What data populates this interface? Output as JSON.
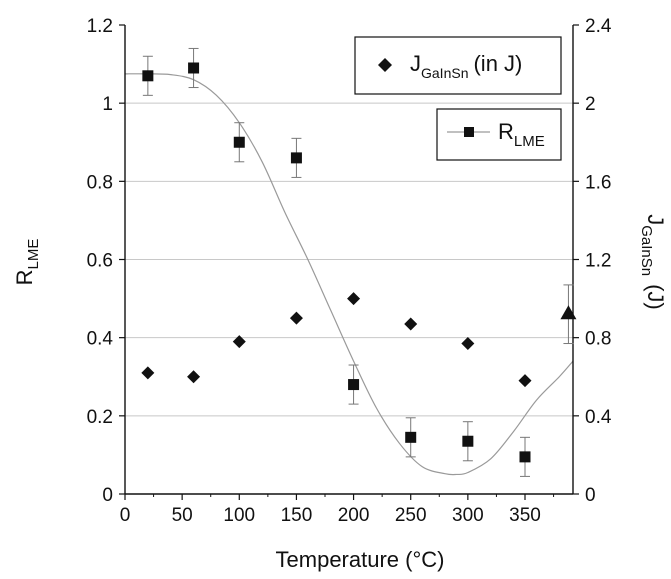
{
  "chart_data": {
    "type": "scatter",
    "xlabel": "Temperature (°C)",
    "ylabel_left": {
      "main": "R",
      "sub": "LME"
    },
    "ylabel_right": {
      "main": "J",
      "sub": "GaInSn",
      "suffix": "(J)"
    },
    "xlim": [
      0,
      392
    ],
    "ylim_left": [
      0,
      1.2
    ],
    "ylim_right": [
      0,
      2.4
    ],
    "x_ticks": [
      0,
      50,
      100,
      150,
      200,
      250,
      300,
      350
    ],
    "left_ticks": [
      "0",
      "0.2",
      "0.4",
      "0.6",
      "0.8",
      "1",
      "1.2"
    ],
    "right_ticks": [
      "0",
      "0.4",
      "0.8",
      "1.2",
      "1.6",
      "2",
      "2.4"
    ],
    "gridlines": [
      0.2,
      0.4,
      0.6,
      0.8,
      1.0
    ],
    "series": [
      {
        "name": {
          "main": "R",
          "sub": "LME"
        },
        "marker": "square",
        "axis": "left",
        "x": [
          20,
          60,
          100,
          150,
          200,
          250,
          300,
          350
        ],
        "y": [
          1.07,
          1.09,
          0.9,
          0.86,
          0.28,
          0.145,
          0.135,
          0.095
        ],
        "err": [
          0.05,
          0.05,
          0.05,
          0.05,
          0.05,
          0.05,
          0.05,
          0.05
        ]
      },
      {
        "name": {
          "main": "J",
          "sub": "GaInSn",
          "suffix": "(in J)"
        },
        "marker": "diamond",
        "axis": "right",
        "x": [
          20,
          60,
          100,
          150,
          200,
          250,
          300,
          350
        ],
        "y": [
          0.62,
          0.6,
          0.78,
          0.9,
          1.0,
          0.87,
          0.77,
          0.58
        ]
      },
      {
        "marker": "triangle",
        "axis": "right",
        "x": [
          388
        ],
        "y": [
          0.92
        ],
        "err": [
          0.15
        ]
      }
    ],
    "fit_curve": {
      "axis": "left",
      "x": [
        0,
        20,
        40,
        60,
        80,
        100,
        120,
        140,
        160,
        180,
        200,
        220,
        240,
        260,
        280,
        290,
        300,
        320,
        340,
        360,
        380,
        392
      ],
      "y": [
        1.075,
        1.075,
        1.073,
        1.06,
        1.02,
        0.95,
        0.85,
        0.72,
        0.6,
        0.47,
        0.34,
        0.22,
        0.13,
        0.07,
        0.052,
        0.05,
        0.055,
        0.09,
        0.16,
        0.24,
        0.3,
        0.34
      ]
    }
  }
}
